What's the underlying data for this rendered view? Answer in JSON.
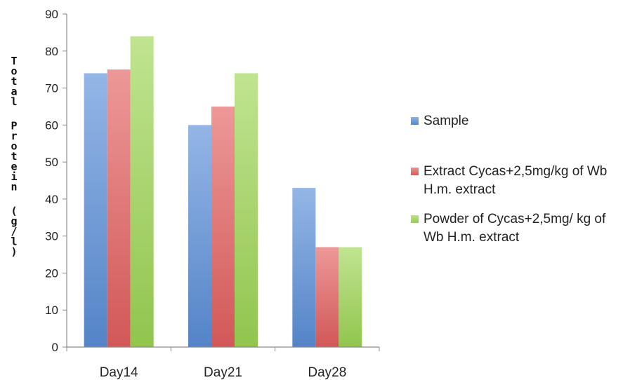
{
  "chart_data": {
    "type": "bar",
    "title": "",
    "xlabel": "",
    "ylabel": "Total Protein (g/l)",
    "ylim": [
      0,
      90
    ],
    "yticks": [
      0,
      10,
      20,
      30,
      40,
      50,
      60,
      70,
      80,
      90
    ],
    "categories": [
      "Day14",
      "Day21",
      "Day28"
    ],
    "series": [
      {
        "name": "Sample",
        "values": [
          74,
          60,
          43
        ],
        "color": "#5b8fd8"
      },
      {
        "name": "Extract Cycas+2,5mg/kg of Wb H.m. extract",
        "values": [
          75,
          65,
          27
        ],
        "color": "#e46060"
      },
      {
        "name": "Powder of Cycas+2,5mg/ kg of Wb H.m. extract",
        "values": [
          84,
          74,
          27
        ],
        "color": "#9ed655"
      }
    ],
    "grid": false,
    "legend_position": "right"
  }
}
